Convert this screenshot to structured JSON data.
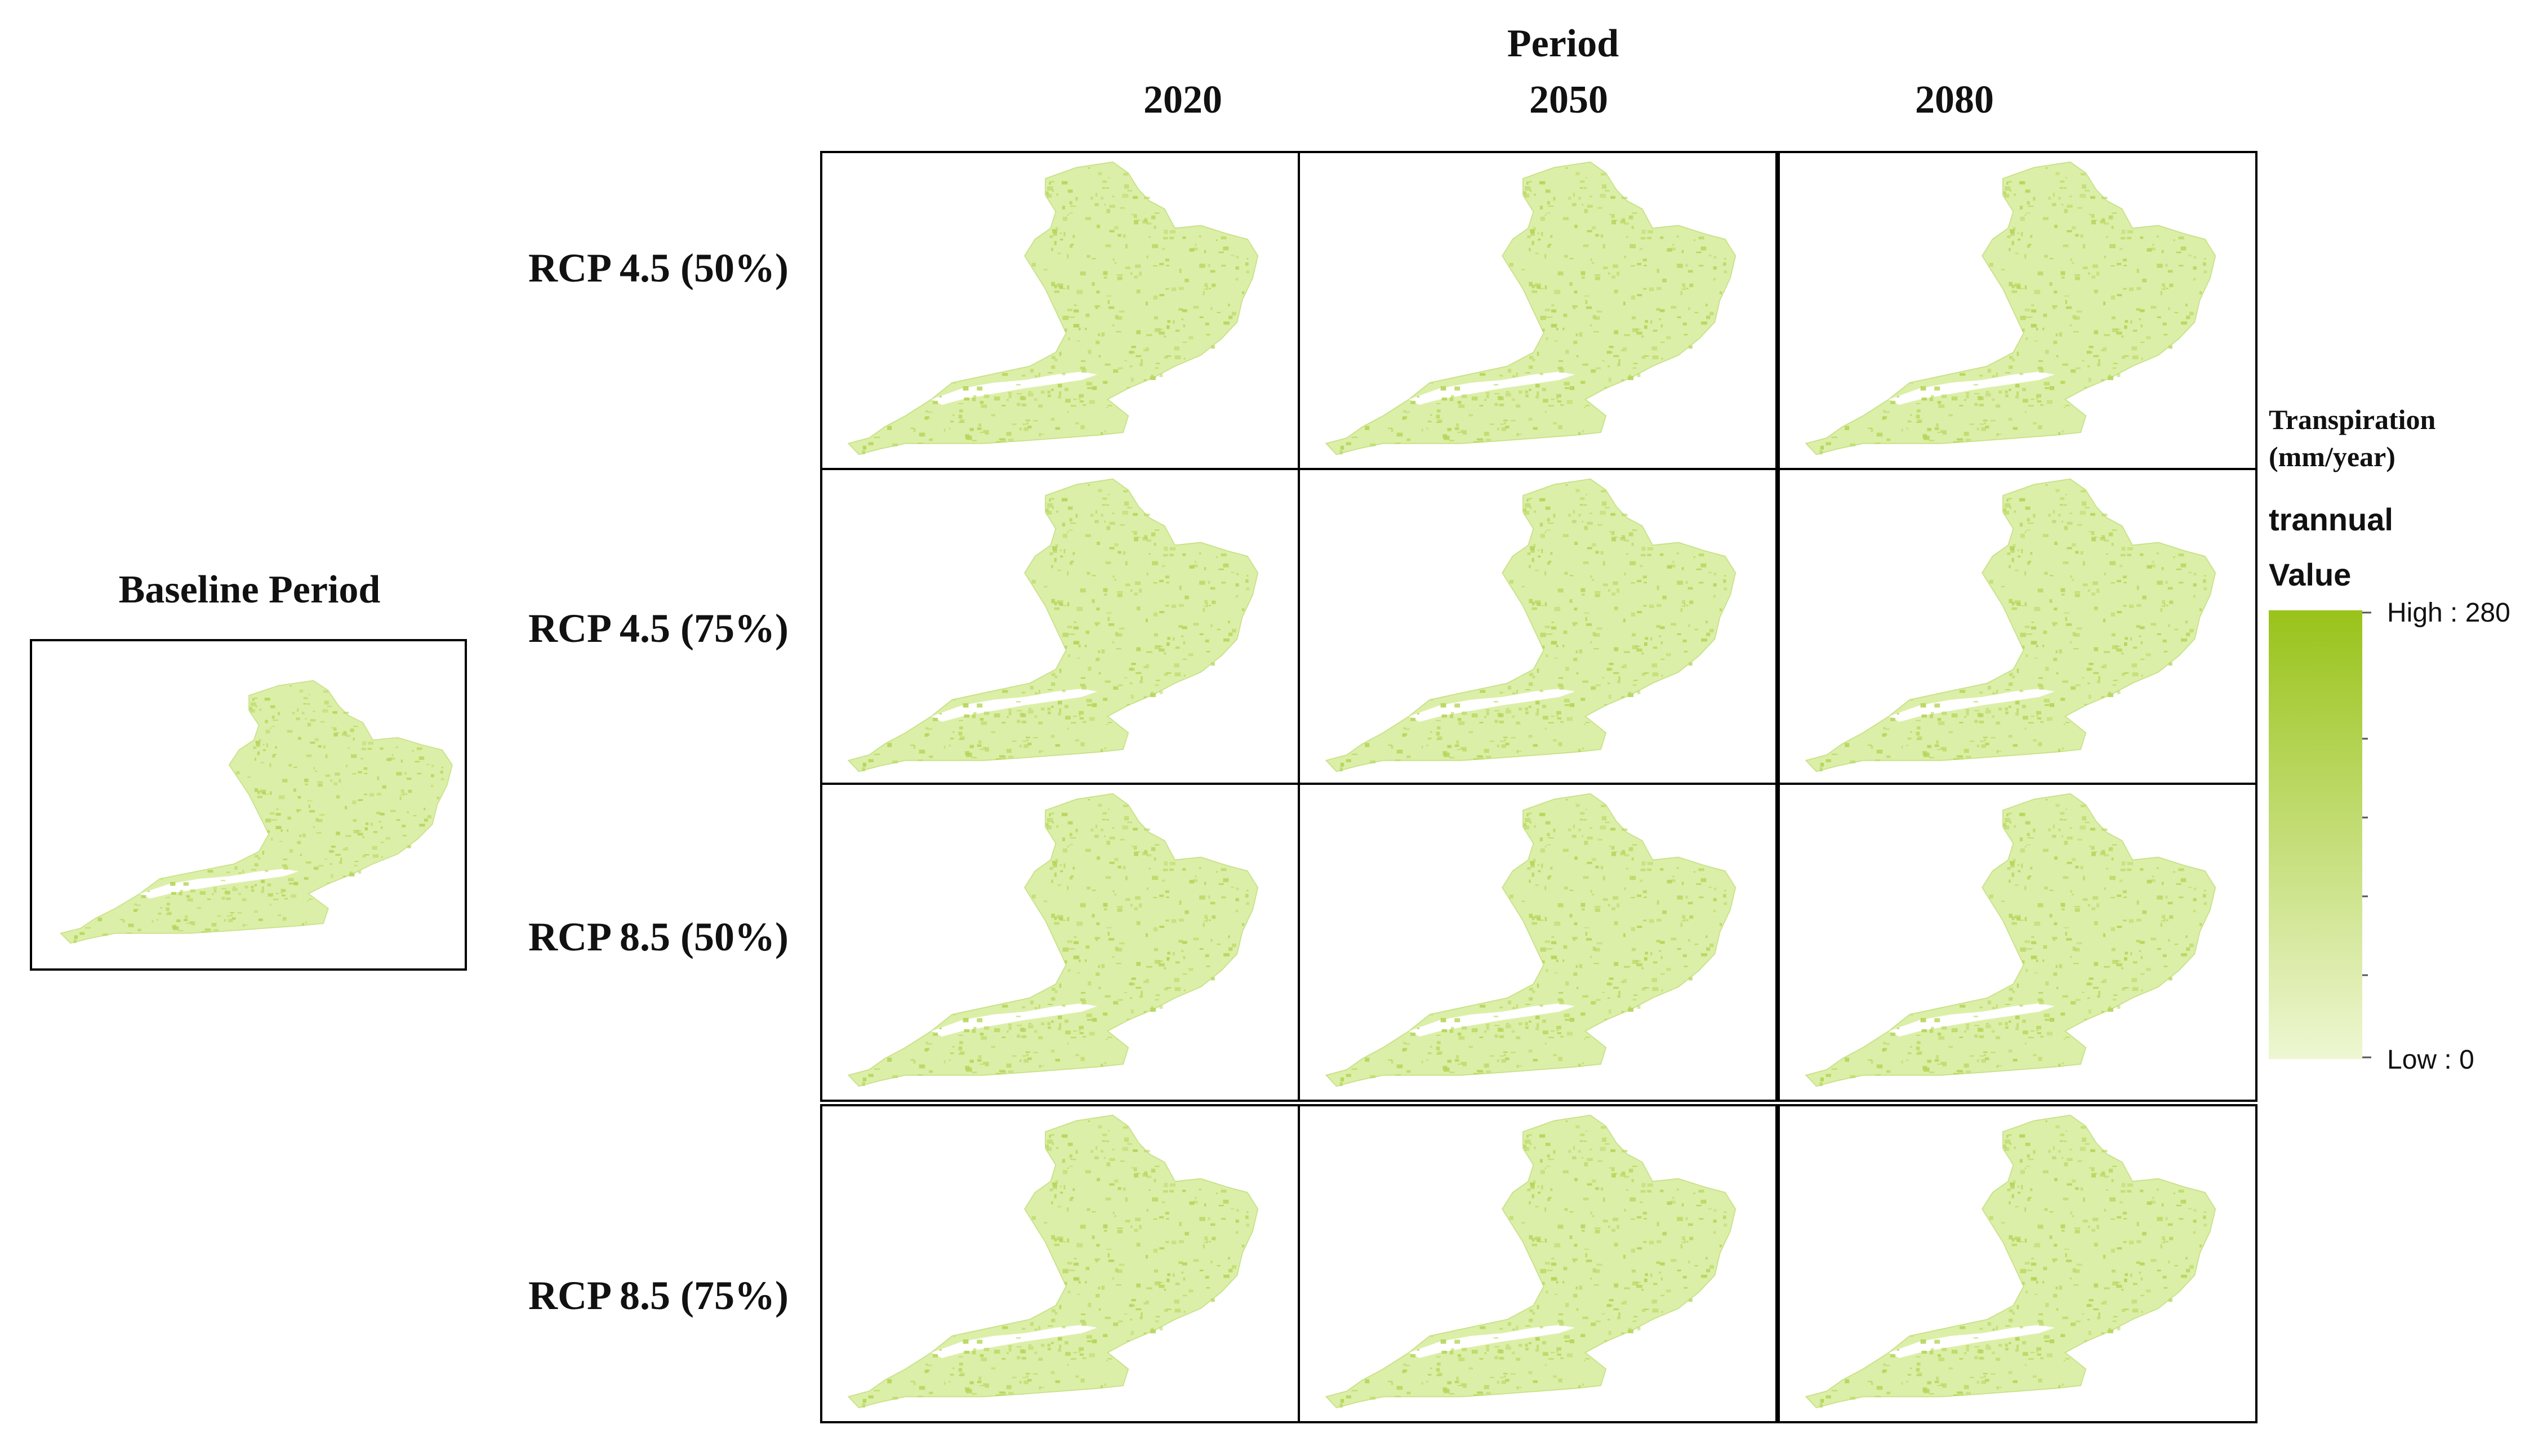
{
  "header": {
    "title": "Period",
    "columns": [
      "2020",
      "2050",
      "2080"
    ]
  },
  "rows": [
    "RCP 4.5 (50%)",
    "RCP 4.5 (75%)",
    "RCP 8.5 (50%)",
    "RCP 8.5 (75%)"
  ],
  "baseline": {
    "label": "Baseline Period"
  },
  "legend": {
    "title_line1": "Transpiration",
    "title_line2": "(mm/year)",
    "layer_name": "trannual",
    "field_name": "Value",
    "high_label": "High : 280",
    "low_label": "Low : 0",
    "high_value": 280,
    "low_value": 0,
    "color_high": "#99c31a",
    "color_low": "#eef7d2"
  },
  "map_colors": {
    "fill": "#dcefa8",
    "speckle": "#b5d55a"
  }
}
